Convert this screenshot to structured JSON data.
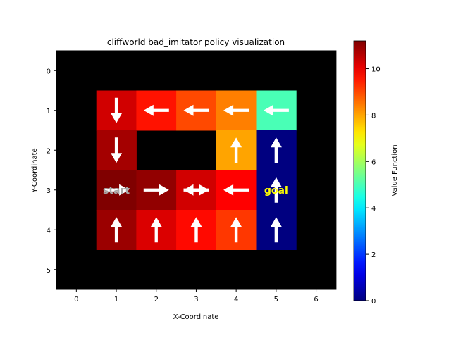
{
  "chart_data": {
    "type": "heatmap",
    "title": "cliffworld bad_imitator policy visualization",
    "xlabel": "X-Coordinate",
    "ylabel": "Y-Coordinate",
    "x_ticks": [
      "0",
      "1",
      "2",
      "3",
      "4",
      "5",
      "6"
    ],
    "y_ticks": [
      "0",
      "1",
      "2",
      "3",
      "4",
      "5"
    ],
    "colorbar": {
      "label": "Value Function",
      "range": [
        0,
        11.2
      ],
      "ticks": [
        "0",
        "2",
        "4",
        "6",
        "8",
        "10"
      ],
      "colormap": "jet"
    },
    "cells": [
      {
        "x": 1,
        "y": 1,
        "value": 10.3,
        "action": "down"
      },
      {
        "x": 2,
        "y": 1,
        "value": 9.6,
        "action": "left"
      },
      {
        "x": 3,
        "y": 1,
        "value": 9.0,
        "action": "left"
      },
      {
        "x": 4,
        "y": 1,
        "value": 8.4,
        "action": "left"
      },
      {
        "x": 5,
        "y": 1,
        "value": 5.0,
        "action": "left"
      },
      {
        "x": 1,
        "y": 2,
        "value": 10.8,
        "action": "down"
      },
      {
        "x": 4,
        "y": 2,
        "value": 8.0,
        "action": "up"
      },
      {
        "x": 5,
        "y": 2,
        "value": 0.0,
        "action": "up"
      },
      {
        "x": 1,
        "y": 3,
        "value": 11.2,
        "action": "right"
      },
      {
        "x": 2,
        "y": 3,
        "value": 11.0,
        "action": "right"
      },
      {
        "x": 3,
        "y": 3,
        "value": 10.3,
        "action": "right"
      },
      {
        "x": 3,
        "y": 3,
        "value": 10.3,
        "action": "left"
      },
      {
        "x": 4,
        "y": 3,
        "value": 9.8,
        "action": "left"
      },
      {
        "x": 5,
        "y": 3,
        "value": 0.0,
        "action": "up"
      },
      {
        "x": 1,
        "y": 4,
        "value": 10.9,
        "action": "up"
      },
      {
        "x": 2,
        "y": 4,
        "value": 10.2,
        "action": "up"
      },
      {
        "x": 3,
        "y": 4,
        "value": 9.7,
        "action": "up"
      },
      {
        "x": 4,
        "y": 4,
        "value": 9.2,
        "action": "up"
      },
      {
        "x": 5,
        "y": 4,
        "value": 0.0,
        "action": "up"
      }
    ],
    "labels": [
      {
        "x": 1,
        "y": 3,
        "text": "start",
        "color": "#a9a9a9"
      },
      {
        "x": 5,
        "y": 3,
        "text": "goal",
        "color": "#ffff00"
      }
    ],
    "background_color": "#000000",
    "grid": false
  }
}
